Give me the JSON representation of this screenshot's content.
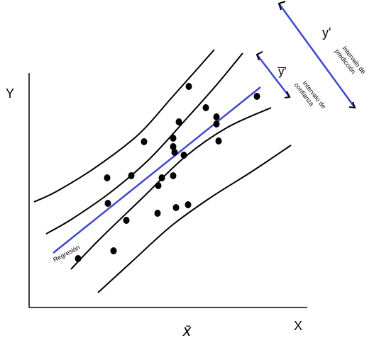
{
  "chart_data": {
    "type": "scatter",
    "title": "",
    "xlabel": "X",
    "ylabel": "Y",
    "x_mean_label": "x̄",
    "annotations": {
      "regression": "Regresión",
      "confidence_interval": "Intervalo de confianza",
      "confidence_interval_lines": [
        "Intervalo de",
        "confianza"
      ],
      "confidence_symbol": "y̅'",
      "prediction_interval": "Intervalo de predicción",
      "prediction_interval_lines": [
        "Intervalo de",
        "predicción"
      ],
      "prediction_symbol": "y'"
    },
    "colors": {
      "points": "#000000",
      "regression_line": "#3f48cc",
      "bands": "#000000",
      "axes": "#000000"
    },
    "points": [
      [
        110,
        365
      ],
      [
        160,
        354
      ],
      [
        152,
        287
      ],
      [
        151,
        251
      ],
      [
        178,
        311
      ],
      [
        185,
        248
      ],
      [
        203,
        200
      ],
      [
        222,
        301
      ],
      [
        223,
        262
      ],
      [
        228,
        251
      ],
      [
        244,
        248
      ],
      [
        248,
        293
      ],
      [
        265,
        289
      ],
      [
        244,
        207
      ],
      [
        244,
        195
      ],
      [
        246,
        215
      ],
      [
        259,
        219
      ],
      [
        252,
        172
      ],
      [
        266,
        122
      ],
      [
        290,
        152
      ],
      [
        305,
        165
      ],
      [
        305,
        175
      ],
      [
        308,
        199
      ],
      [
        362,
        136
      ]
    ],
    "regression_line": [
      [
        75,
        357
      ],
      [
        367,
        123
      ]
    ],
    "prediction_upper": [
      [
        48,
        285
      ],
      [
        80,
        270
      ],
      [
        135,
        236
      ],
      [
        195,
        190
      ],
      [
        240,
        140
      ],
      [
        280,
        95
      ],
      [
        302,
        70
      ]
    ],
    "confidence_upper": [
      [
        65,
        330
      ],
      [
        100,
        310
      ],
      [
        155,
        272
      ],
      [
        210,
        225
      ],
      [
        265,
        165
      ],
      [
        305,
        120
      ],
      [
        342,
        75
      ]
    ],
    "confidence_lower": [
      [
        100,
        380
      ],
      [
        140,
        338
      ],
      [
        200,
        280
      ],
      [
        260,
        222
      ],
      [
        320,
        180
      ],
      [
        382,
        152
      ]
    ],
    "prediction_lower": [
      [
        138,
        413
      ],
      [
        185,
        370
      ],
      [
        240,
        320
      ],
      [
        295,
        280
      ],
      [
        355,
        242
      ],
      [
        410,
        205
      ]
    ]
  }
}
